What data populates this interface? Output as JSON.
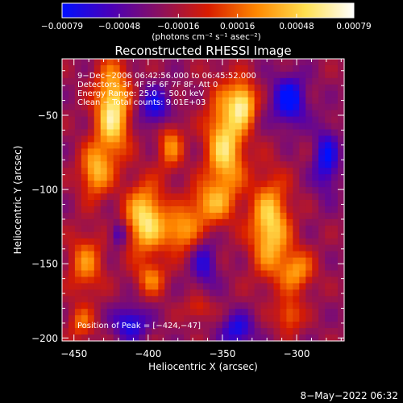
{
  "chart_data": {
    "type": "heatmap",
    "title": "Reconstructed RHESSI Image",
    "xlabel": "Heliocentric X (arcsec)",
    "ylabel": "Heliocentric Y (arcsec)",
    "xlim": [
      -458,
      -268
    ],
    "ylim": [
      -202,
      -12
    ],
    "x_ticks": [
      -450,
      -400,
      -350,
      -300
    ],
    "x_tick_labels": [
      "−450",
      "−400",
      "−350",
      "−300"
    ],
    "y_ticks": [
      -200,
      -150,
      -100,
      -50
    ],
    "y_tick_labels": [
      "−200",
      "−150",
      "−100",
      "−50"
    ],
    "colorbar": {
      "range": [
        -0.00079,
        0.00079
      ],
      "ticks": [
        -0.00079,
        -0.00048,
        -0.00016,
        0.00016,
        0.00048,
        0.00079
      ],
      "tick_labels": [
        "−0.00079",
        "−0.00048",
        "−0.00016",
        "0.00016",
        "0.00048",
        "0.00079"
      ],
      "unit_label": "(photons cm⁻² s⁻¹ asec⁻²)",
      "colormap": [
        "#0010ff",
        "#4a00b8",
        "#8a1060",
        "#d81c00",
        "#ff8800",
        "#ffe050",
        "#ffffff"
      ]
    },
    "annotations": [
      "9−Dec−2006 06:42:56.000 to 06:45:52.000",
      "Detectors: 3F 4F 5F 6F 7F 8F, Att 0",
      "Energy Range: 25.0 − 50.0 keV",
      "Clean  − Total counts: 9.01E+03"
    ],
    "peak_label": "Position of Peak = [−424,−47]",
    "peak": {
      "x": -424,
      "y": -47
    },
    "intensity_sources": [
      {
        "x": -424,
        "y": -47,
        "sx": 8,
        "sy": 22,
        "amp": 1.0
      },
      {
        "x": -436,
        "y": -88,
        "sx": 7,
        "sy": 12,
        "amp": 0.7
      },
      {
        "x": -402,
        "y": -120,
        "sx": 9,
        "sy": 16,
        "amp": 0.95
      },
      {
        "x": -385,
        "y": -70,
        "sx": 6,
        "sy": 12,
        "amp": 0.55
      },
      {
        "x": -348,
        "y": -70,
        "sx": 9,
        "sy": 26,
        "amp": 0.9
      },
      {
        "x": -336,
        "y": -42,
        "sx": 6,
        "sy": 10,
        "amp": 0.85
      },
      {
        "x": -360,
        "y": -110,
        "sx": 10,
        "sy": 10,
        "amp": 0.55
      },
      {
        "x": -378,
        "y": -128,
        "sx": 9,
        "sy": 10,
        "amp": 0.65
      },
      {
        "x": -318,
        "y": -125,
        "sx": 9,
        "sy": 22,
        "amp": 0.9
      },
      {
        "x": -300,
        "y": -155,
        "sx": 8,
        "sy": 10,
        "amp": 0.6
      },
      {
        "x": -442,
        "y": -150,
        "sx": 8,
        "sy": 14,
        "amp": 0.55
      },
      {
        "x": -398,
        "y": -160,
        "sx": 7,
        "sy": 8,
        "amp": 0.5
      },
      {
        "x": -445,
        "y": -190,
        "sx": 6,
        "sy": 8,
        "amp": 0.45
      },
      {
        "x": -305,
        "y": -185,
        "sx": 6,
        "sy": 8,
        "amp": 0.5
      },
      {
        "x": -366,
        "y": -180,
        "sx": 6,
        "sy": 6,
        "amp": 0.35
      },
      {
        "x": -420,
        "y": -130,
        "sx": 4,
        "sy": 6,
        "amp": -0.45
      },
      {
        "x": -362,
        "y": -150,
        "sx": 6,
        "sy": 12,
        "amp": -0.45
      },
      {
        "x": -305,
        "y": -40,
        "sx": 8,
        "sy": 12,
        "amp": -0.7
      },
      {
        "x": -395,
        "y": -45,
        "sx": 8,
        "sy": 10,
        "amp": -0.55
      },
      {
        "x": -280,
        "y": -80,
        "sx": 6,
        "sy": 15,
        "amp": -0.6
      },
      {
        "x": -412,
        "y": -190,
        "sx": 8,
        "sy": 8,
        "amp": -0.6
      },
      {
        "x": -340,
        "y": -195,
        "sx": 8,
        "sy": 8,
        "amp": -0.55
      }
    ],
    "grid": false
  },
  "footer": {
    "timestamp": "8−May−2022 06:32"
  }
}
